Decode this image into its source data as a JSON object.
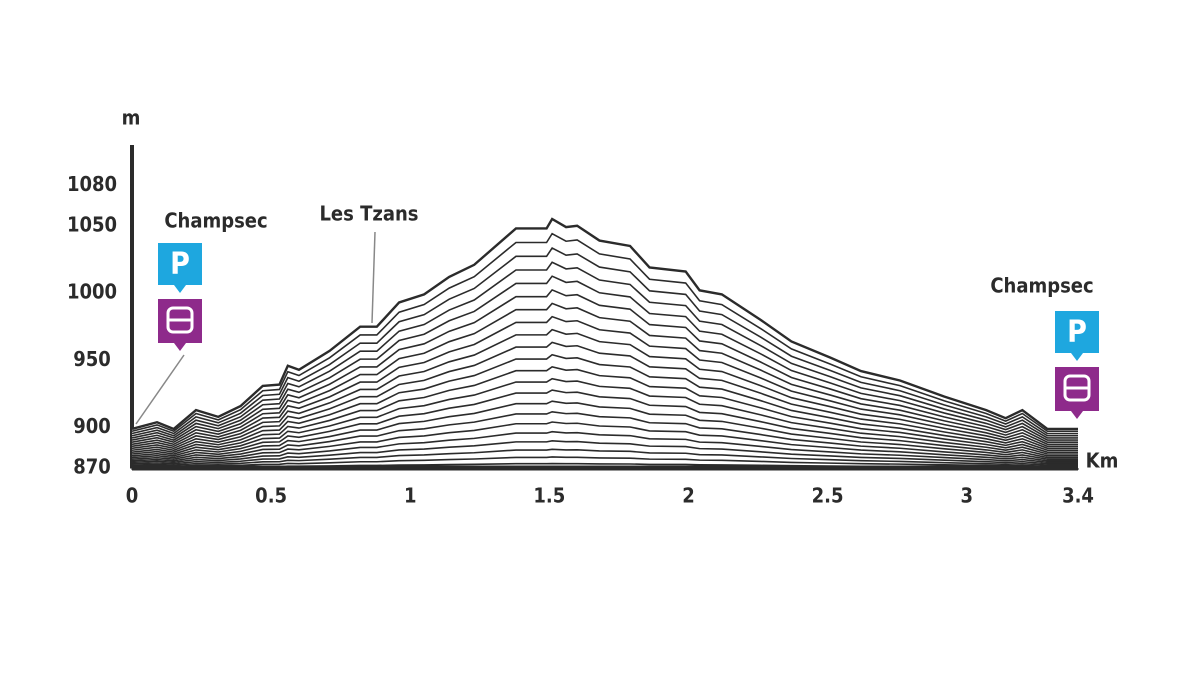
{
  "chart_data": {
    "type": "area",
    "y_label": "m",
    "x_label": "Km",
    "x": [
      0,
      0.09,
      0.15,
      0.23,
      0.31,
      0.39,
      0.47,
      0.53,
      0.56,
      0.6,
      0.71,
      0.82,
      0.88,
      0.96,
      1.05,
      1.14,
      1.23,
      1.38,
      1.49,
      1.51,
      1.56,
      1.6,
      1.68,
      1.79,
      1.86,
      1.99,
      2.04,
      2.12,
      2.26,
      2.37,
      2.51,
      2.62,
      2.76,
      2.92,
      3.07,
      3.14,
      3.2,
      3.29,
      3.4
    ],
    "series": [
      {
        "color": "#2b2b2b",
        "values": [
          899,
          904,
          899,
          913,
          908,
          916,
          931,
          932,
          946,
          943,
          957,
          975,
          975,
          993,
          999,
          1012,
          1021,
          1048,
          1048,
          1055,
          1049,
          1050,
          1039,
          1035,
          1019,
          1016,
          1002,
          999,
          980,
          964,
          952,
          942,
          935,
          923,
          913,
          907,
          913,
          899,
          899
        ]
      }
    ],
    "xlim": [
      0,
      3.4
    ],
    "xticks": [
      0,
      0.5,
      1,
      1.5,
      2,
      2.5,
      3,
      3.4
    ],
    "ylim": [
      870,
      1110
    ],
    "yticks": [
      870,
      900,
      950,
      1000,
      1050,
      1080
    ],
    "annotations": [
      "Champsec",
      "Les Tzans",
      "Champsec"
    ],
    "parking_symbol": "P"
  }
}
